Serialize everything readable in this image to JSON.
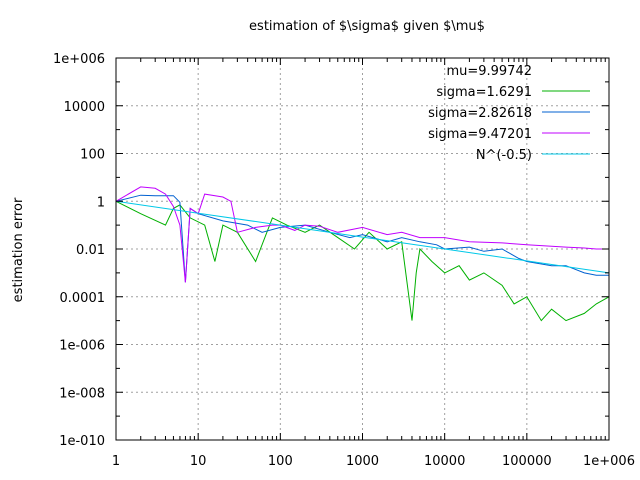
{
  "chart_data": {
    "type": "line",
    "title": "estimation of $\\sigma$ given $\\mu$",
    "xlabel": "",
    "ylabel": "estimation error",
    "x_scale": "log",
    "y_scale": "log",
    "xlim": [
      1,
      1000000
    ],
    "ylim": [
      1e-10,
      1000000
    ],
    "x_ticks": [
      "1",
      "10",
      "100",
      "1000",
      "10000",
      "100000",
      "1e+006"
    ],
    "y_ticks": [
      "1e-010",
      "1e-008",
      "1e-006",
      "0.0001",
      "0.01",
      "1",
      "100",
      "10000",
      "1e+006"
    ],
    "grid": true,
    "legend_position": "top-right",
    "legend_header": "mu=9.99742",
    "series": [
      {
        "name": "sigma=1.6291",
        "color": "#00b000",
        "x": [
          1,
          2,
          4,
          5,
          6,
          8,
          12,
          16,
          20,
          30,
          50,
          80,
          120,
          200,
          300,
          500,
          800,
          1200,
          2000,
          3000,
          4000,
          4500,
          5000,
          7000,
          10000,
          15000,
          20000,
          30000,
          50000,
          70000,
          100000,
          150000,
          200000,
          300000,
          500000,
          700000,
          1000000
        ],
        "y": [
          1,
          0.3,
          0.1,
          0.5,
          0.7,
          0.2,
          0.1,
          0.003,
          0.1,
          0.05,
          0.003,
          0.2,
          0.1,
          0.05,
          0.1,
          0.03,
          0.01,
          0.05,
          0.01,
          0.02,
          1e-05,
          0.001,
          0.01,
          0.003,
          0.001,
          0.002,
          0.0005,
          0.001,
          0.0003,
          5e-05,
          0.0001,
          1e-05,
          3e-05,
          1e-05,
          2e-05,
          5e-05,
          0.0001
        ]
      },
      {
        "name": "sigma=2.82618",
        "color": "#0060d0",
        "x": [
          1,
          2,
          3,
          5,
          6,
          7,
          8,
          10,
          20,
          40,
          60,
          100,
          200,
          400,
          700,
          1000,
          2000,
          3000,
          5000,
          8000,
          10000,
          20000,
          30000,
          50000,
          80000,
          100000,
          200000,
          300000,
          500000,
          700000,
          1000000
        ],
        "y": [
          1,
          1.8,
          1.7,
          1.7,
          0.9,
          0.0004,
          0.5,
          0.3,
          0.15,
          0.1,
          0.05,
          0.08,
          0.1,
          0.05,
          0.03,
          0.04,
          0.02,
          0.03,
          0.02,
          0.015,
          0.01,
          0.012,
          0.008,
          0.01,
          0.004,
          0.003,
          0.002,
          0.002,
          0.001,
          0.0008,
          0.0008
        ]
      },
      {
        "name": "sigma=9.47201",
        "color": "#c000ff",
        "x": [
          1,
          2,
          3,
          4,
          5,
          6,
          7,
          8,
          10,
          12,
          20,
          25,
          30,
          50,
          80,
          100,
          150,
          200,
          300,
          500,
          1000,
          2000,
          3000,
          5000,
          10000,
          20000,
          50000,
          100000,
          200000,
          300000,
          500000,
          700000,
          1000000
        ],
        "y": [
          1,
          4,
          3.5,
          2,
          0.6,
          0.1,
          0.0004,
          0.5,
          0.3,
          2,
          1.5,
          1,
          0.05,
          0.08,
          0.1,
          0.1,
          0.06,
          0.1,
          0.09,
          0.05,
          0.08,
          0.04,
          0.05,
          0.03,
          0.03,
          0.02,
          0.018,
          0.015,
          0.013,
          0.012,
          0.011,
          0.01,
          0.01
        ]
      },
      {
        "name": "N^(-0.5)",
        "color": "#00c8e8",
        "x": [
          1,
          10,
          100,
          1000,
          10000,
          100000,
          1000000
        ],
        "y": [
          1,
          0.316,
          0.1,
          0.0316,
          0.01,
          0.00316,
          0.001
        ]
      }
    ]
  }
}
